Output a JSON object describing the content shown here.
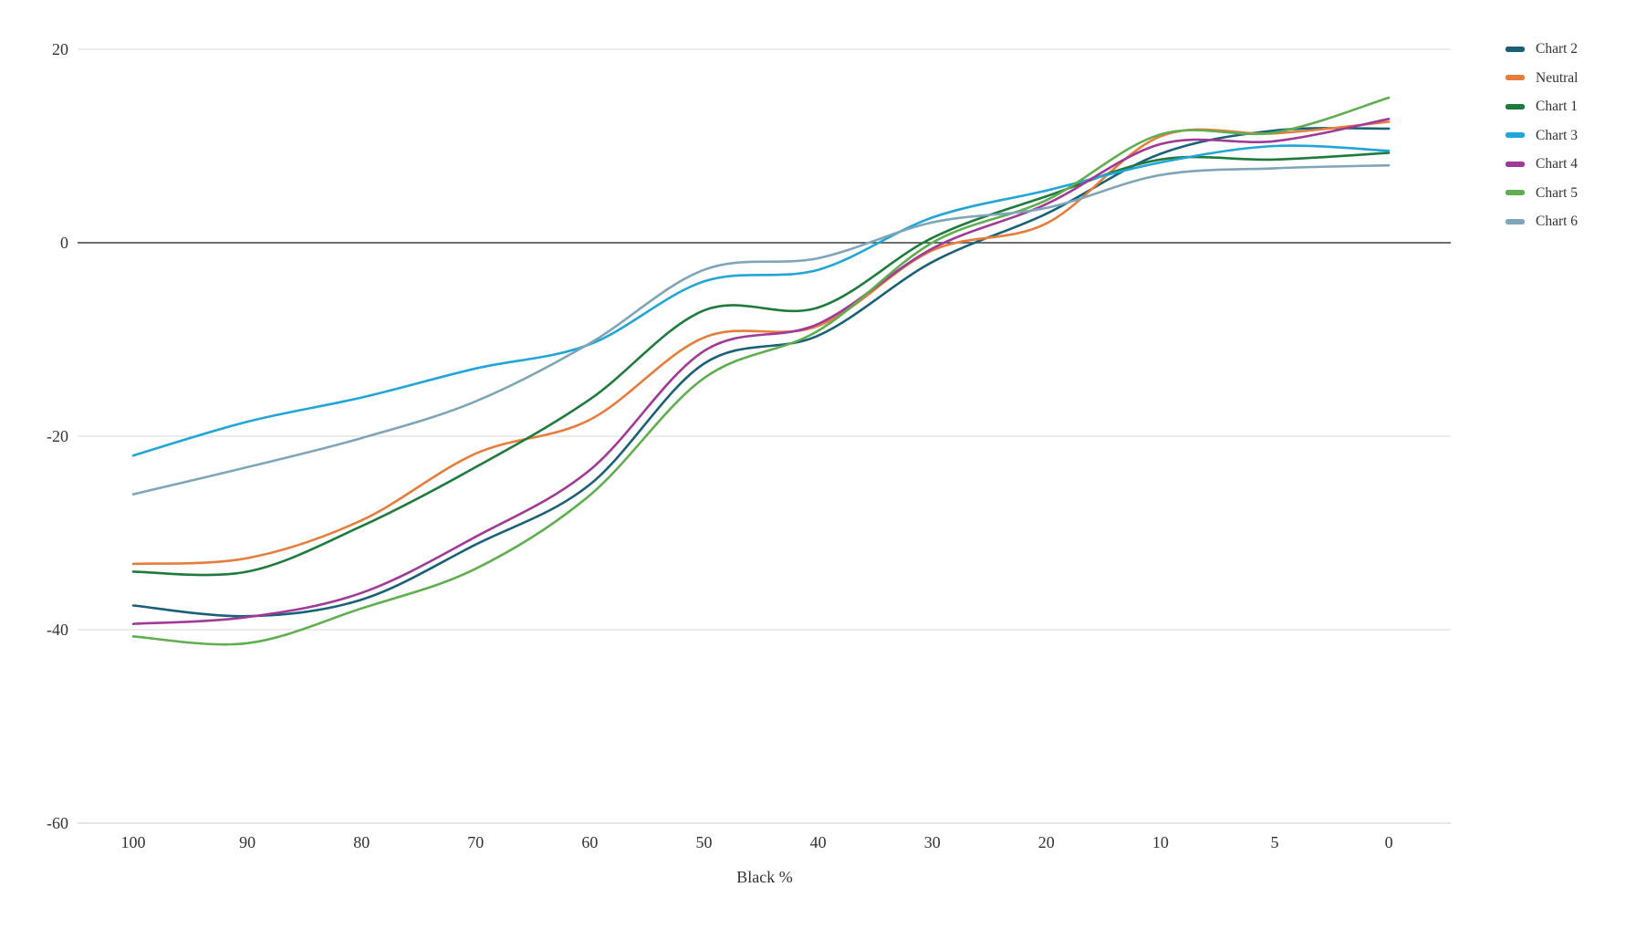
{
  "page": {
    "background": "#ffffff"
  },
  "colors": {
    "grid_line": "#d9d9d9",
    "zero_line": "#3f3f3f",
    "baseline": "#cbcbcb",
    "tick_text": "#333333"
  },
  "chart_data": {
    "type": "line",
    "title": "",
    "xlabel": "Black %",
    "ylabel": "",
    "x_categories": [
      "100",
      "90",
      "80",
      "70",
      "60",
      "50",
      "40",
      "30",
      "20",
      "10",
      "5",
      "0"
    ],
    "y_ticks": [
      20,
      0,
      -20,
      -40,
      -60
    ],
    "y_tick_labels": [
      "20",
      "0",
      "-20",
      "-40",
      "-60"
    ],
    "ylim": [
      -60,
      22
    ],
    "grid": "horizontal",
    "zero_line": true,
    "legend_position": "right",
    "curve": "smooth",
    "series": [
      {
        "name": "Chart 2",
        "color": "#1a6178",
        "values": [
          -37.5,
          -38.6,
          -36.9,
          -31.2,
          -25.0,
          -12.5,
          -9.6,
          -2.0,
          3.0,
          9.2,
          11.6,
          11.8
        ]
      },
      {
        "name": "Neutral",
        "color": "#e67d3c",
        "values": [
          -33.2,
          -32.6,
          -28.7,
          -21.8,
          -18.3,
          -9.8,
          -8.6,
          -0.8,
          2.0,
          11.0,
          11.3,
          12.5
        ]
      },
      {
        "name": "Chart 1",
        "color": "#1f7b3d",
        "values": [
          -34.0,
          -34.0,
          -29.3,
          -23.2,
          -16.2,
          -7.0,
          -6.7,
          0.5,
          4.8,
          8.6,
          8.6,
          9.3
        ]
      },
      {
        "name": "Chart 3",
        "color": "#22a5d9",
        "values": [
          -22.0,
          -18.5,
          -16.0,
          -13.0,
          -10.5,
          -4.0,
          -2.8,
          2.6,
          5.4,
          8.3,
          10.0,
          9.5
        ]
      },
      {
        "name": "Chart 4",
        "color": "#a13a97",
        "values": [
          -39.4,
          -38.7,
          -36.2,
          -30.4,
          -23.5,
          -11.2,
          -8.4,
          -0.6,
          4.0,
          10.2,
          10.5,
          12.8
        ]
      },
      {
        "name": "Chart 5",
        "color": "#5fae4f",
        "values": [
          -40.7,
          -41.4,
          -37.8,
          -33.7,
          -26.1,
          -14.0,
          -9.1,
          0.0,
          4.4,
          11.2,
          11.4,
          15.0
        ]
      },
      {
        "name": "Chart 6",
        "color": "#7ea6b8",
        "values": [
          -26.0,
          -23.2,
          -20.2,
          -16.4,
          -10.4,
          -2.8,
          -1.6,
          2.1,
          3.6,
          7.0,
          7.7,
          8.0
        ]
      }
    ]
  }
}
